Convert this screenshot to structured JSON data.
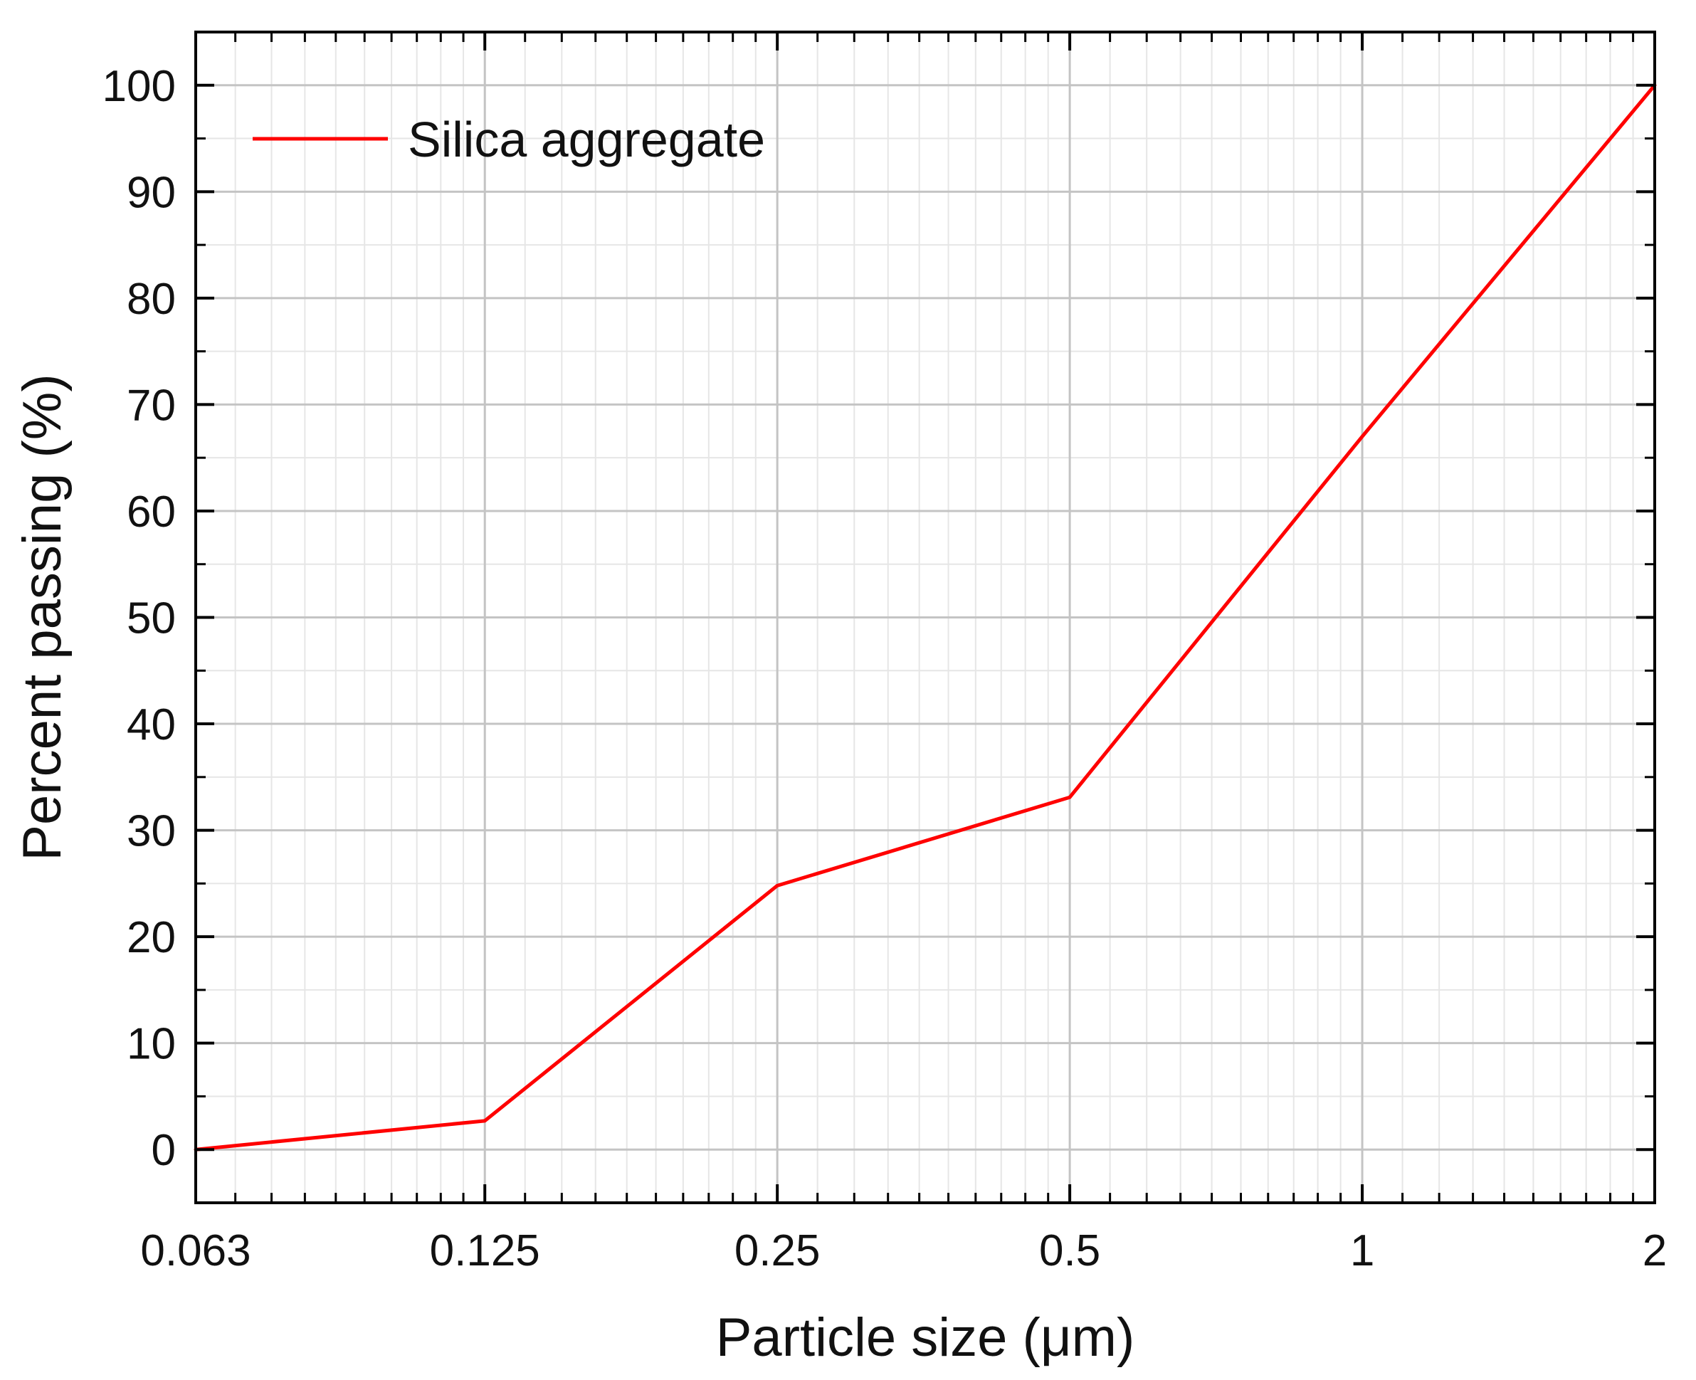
{
  "chart_data": {
    "type": "line",
    "xscale": "log2",
    "xlim": [
      0.063,
      2
    ],
    "ylim": [
      -5,
      105
    ],
    "xticks": [
      0.063,
      0.125,
      0.25,
      0.5,
      1,
      2
    ],
    "xtick_labels": [
      "0.063",
      "0.125",
      "0.25",
      "0.5",
      "1",
      "2"
    ],
    "yticks": [
      0,
      10,
      20,
      30,
      40,
      50,
      60,
      70,
      80,
      90,
      100
    ],
    "ytick_labels": [
      "0",
      "10",
      "20",
      "30",
      "40",
      "50",
      "60",
      "70",
      "80",
      "90",
      "100"
    ],
    "xlabel": "Particle size (μm)",
    "ylabel": "Percent passing (%)",
    "grid": true,
    "legend_position": "top-left",
    "series": [
      {
        "name": "Silica aggregate",
        "color": "#ff0000",
        "x": [
          0.063,
          0.125,
          0.25,
          0.5,
          1,
          2
        ],
        "y": [
          0,
          2.7,
          24.8,
          33.1,
          67.0,
          100
        ]
      }
    ]
  }
}
